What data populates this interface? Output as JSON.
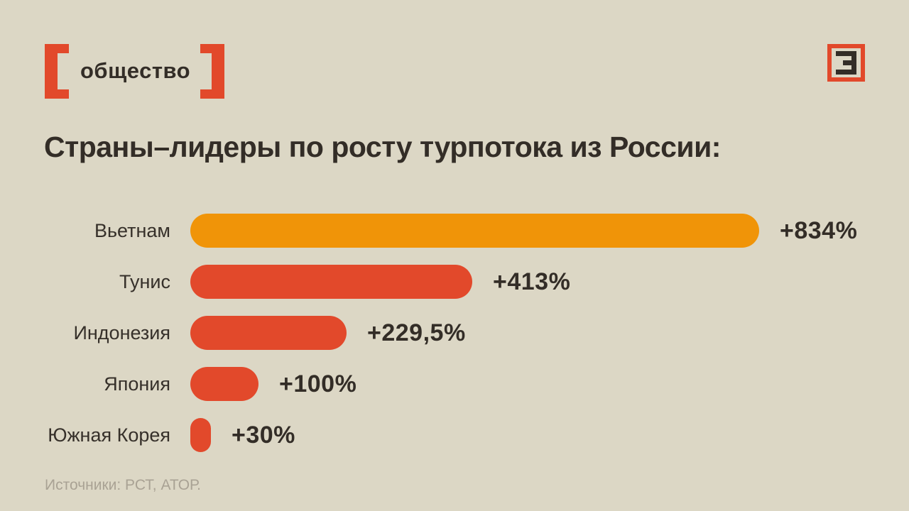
{
  "header": {
    "tag_label": "общество",
    "logo_glyph": "Э"
  },
  "title": "Страны–лидеры по росту турпотока из России:",
  "chart_data": {
    "type": "bar",
    "orientation": "horizontal",
    "title": "Страны–лидеры по росту турпотока из России:",
    "categories": [
      "Вьетнам",
      "Тунис",
      "Индонезия",
      "Япония",
      "Южная Корея"
    ],
    "values": [
      834,
      413,
      229.5,
      100,
      30
    ],
    "value_labels": [
      "+834%",
      "+413%",
      "+229,5%",
      "+100%",
      "+30%"
    ],
    "bar_colors": [
      "#f09408",
      "#e2492b",
      "#e2492b",
      "#e2492b",
      "#e2492b"
    ],
    "xlim": [
      0,
      870
    ],
    "grid": false,
    "legend": false
  },
  "footer": {
    "source_text": "Источники: РСТ, АТОР."
  },
  "colors": {
    "background": "#dcd7c5",
    "accent_red": "#e2492b",
    "accent_orange": "#f09408",
    "text_dark": "#332d27",
    "text_muted": "#a9a294"
  }
}
